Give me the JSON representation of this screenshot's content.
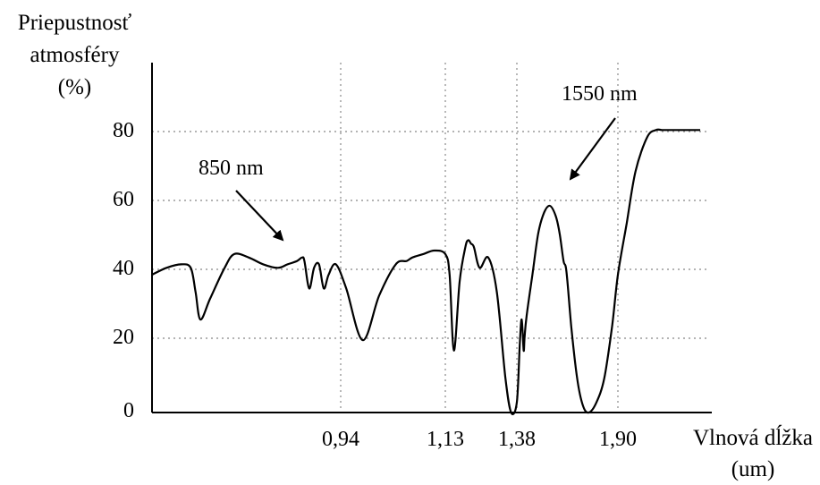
{
  "chart_data": {
    "type": "line",
    "ylabel_lines": [
      "Priepustnosť",
      "atmosféry",
      "(%)"
    ],
    "xlabel_lines": [
      "Vlnová dĺžka",
      "(um)"
    ],
    "yticks": [
      0,
      20,
      40,
      60,
      80
    ],
    "ylim": [
      0,
      95
    ],
    "xticks": [
      "0,94",
      "1,13",
      "1,38",
      "1,90"
    ],
    "grid": "dotted",
    "annotations": [
      {
        "text": "850 nm",
        "points_to": [
          0.85,
          45
        ]
      },
      {
        "text": "1550 nm",
        "points_to": [
          1.55,
          60
        ]
      }
    ],
    "series": [
      {
        "x": [
          0.55,
          0.58,
          0.61,
          0.63,
          0.64,
          0.65,
          0.67,
          0.7,
          0.72,
          0.75,
          0.78,
          0.81,
          0.83,
          0.85,
          0.86,
          0.865,
          0.875,
          0.885,
          0.895,
          0.905,
          0.915,
          0.93,
          0.95,
          0.98,
          1.01,
          1.04,
          1.06,
          1.07,
          1.09,
          1.11,
          1.13,
          1.145,
          1.16,
          1.18,
          1.2,
          1.21,
          1.22,
          1.23,
          1.25,
          1.28,
          1.31,
          1.34,
          1.36,
          1.38,
          1.395,
          1.405,
          1.415,
          1.42,
          1.43,
          1.46,
          1.49,
          1.52,
          1.55,
          1.58,
          1.6,
          1.62,
          1.635,
          1.66,
          1.69,
          1.72,
          1.75,
          1.79,
          1.83,
          1.87,
          1.9,
          1.93,
          1.96,
          2.0,
          2.03,
          2.05,
          2.07,
          2.09,
          2.11,
          2.14,
          2.18
        ],
        "y": [
          40,
          42,
          43,
          42,
          35,
          27,
          33,
          42,
          46,
          45,
          43,
          42,
          43,
          44,
          45,
          44,
          36,
          42,
          43,
          36,
          40,
          43,
          36,
          21,
          34,
          43,
          44,
          45,
          46,
          47,
          46,
          40,
          18,
          38,
          48,
          50,
          49,
          48,
          42,
          45,
          35,
          10,
          0,
          3,
          20,
          27,
          18,
          22,
          28,
          40,
          52,
          58,
          60,
          57,
          52,
          44,
          41,
          25,
          10,
          2,
          0,
          3,
          10,
          25,
          40,
          55,
          70,
          80,
          82,
          82,
          82,
          82,
          82,
          82,
          82
        ]
      }
    ]
  }
}
